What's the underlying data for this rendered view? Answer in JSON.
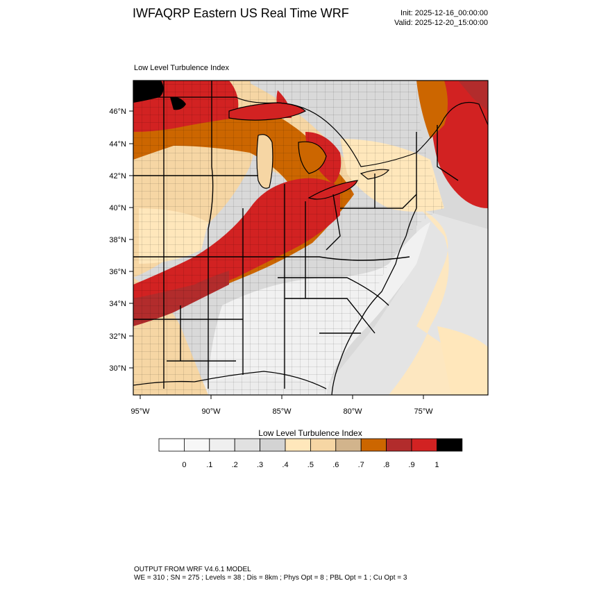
{
  "header": {
    "title": "IWFAQRP Eastern US Real Time WRF",
    "init": "Init: 2025-12-16_00:00:00",
    "valid": "Valid: 2025-12-20_15:00:00"
  },
  "map": {
    "title": "Low Level Turbulence Index",
    "lat_labels": [
      "46°N",
      "44°N",
      "42°N",
      "40°N",
      "38°N",
      "36°N",
      "34°N",
      "32°N",
      "30°N"
    ],
    "lon_labels": [
      "95°W",
      "90°W",
      "85°W",
      "80°W",
      "75°W"
    ]
  },
  "colorbar": {
    "title": "Low Level Turbulence Index",
    "labels": [
      "0",
      ".1",
      ".2",
      ".3",
      ".4",
      ".5",
      ".6",
      ".7",
      ".8",
      ".9",
      "1"
    ],
    "colors": [
      "#ffffff",
      "#f7f7f7",
      "#efefef",
      "#e1e1e1",
      "#d3d3d3",
      "#ffe7bb",
      "#f6d6a4",
      "#d2b48c",
      "#cc6600",
      "#b22c2c",
      "#d22222",
      "#000000"
    ]
  },
  "footer": {
    "line1": "OUTPUT FROM WRF V4.6.1 MODEL",
    "line2": "WE = 310 ; SN = 275 ; Levels = 38 ; Dis = 8km ; Phys Opt = 8 ; PBL Opt = 1 ; Cu Opt = 3"
  }
}
